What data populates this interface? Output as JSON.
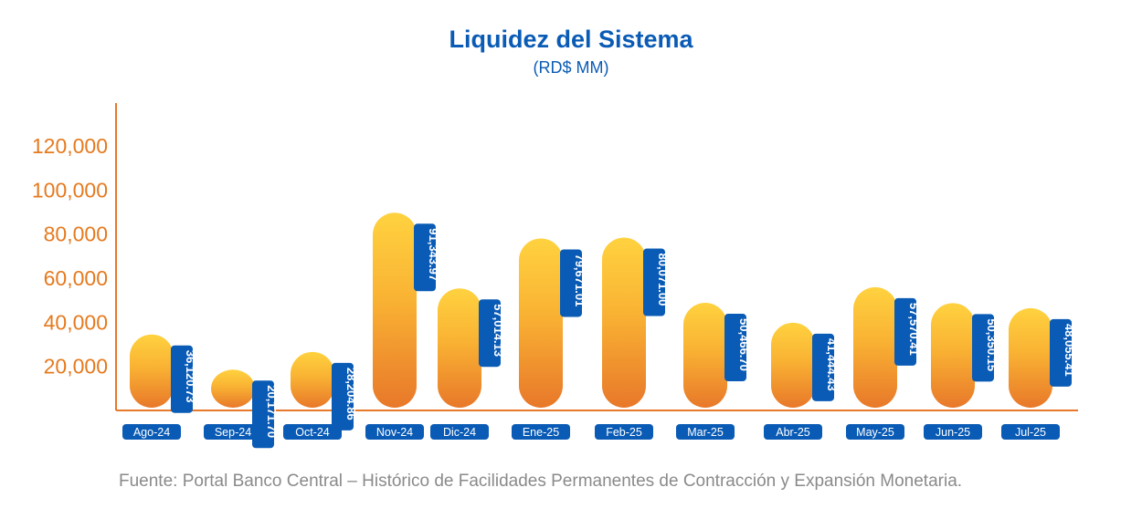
{
  "chart_data": {
    "type": "bar",
    "title": "Liquidez del Sistema",
    "subtitle": "(RD$ MM)",
    "categories": [
      "Ago-24",
      "Sep-24",
      "Oct-24",
      "Nov-24",
      "Dic-24",
      "Ene-25",
      "Feb-25",
      "Mar-25",
      "Abr-25",
      "May-25",
      "Jun-25",
      "Jul-25"
    ],
    "values": [
      36120.73,
      20171.7,
      28204.86,
      91343.97,
      57014.13,
      79671.01,
      80071.0,
      50466.7,
      41444.43,
      57570.41,
      50350.15,
      48055.41
    ],
    "value_labels": [
      "36,120.73",
      "20,171.70",
      "28,204.86",
      "91,343.97",
      "57,014.13",
      "79,671.01",
      "80,071.00",
      "50,466.70",
      "41,444.43",
      "57,570.41",
      "50,350.15",
      "48,055.41"
    ],
    "y_ticks": [
      "20,000",
      "40,000",
      "60,000",
      "80,000",
      "100,000",
      "120,000"
    ],
    "y_tick_values": [
      20000,
      40000,
      60000,
      80000,
      100000,
      120000
    ],
    "ylim": [
      0,
      140000
    ],
    "grid": false,
    "colors": {
      "bar_top": "#ffd23f",
      "bar_mid": "#f9b233",
      "bar_bottom": "#e8782a",
      "label_bg": "#0a5bb5",
      "axis": "#e8782a",
      "title": "#0a5bb5"
    }
  },
  "source": "Fuente: Portal Banco Central – Histórico de Facilidades Permanentes de Contracción y Expansión Monetaria."
}
